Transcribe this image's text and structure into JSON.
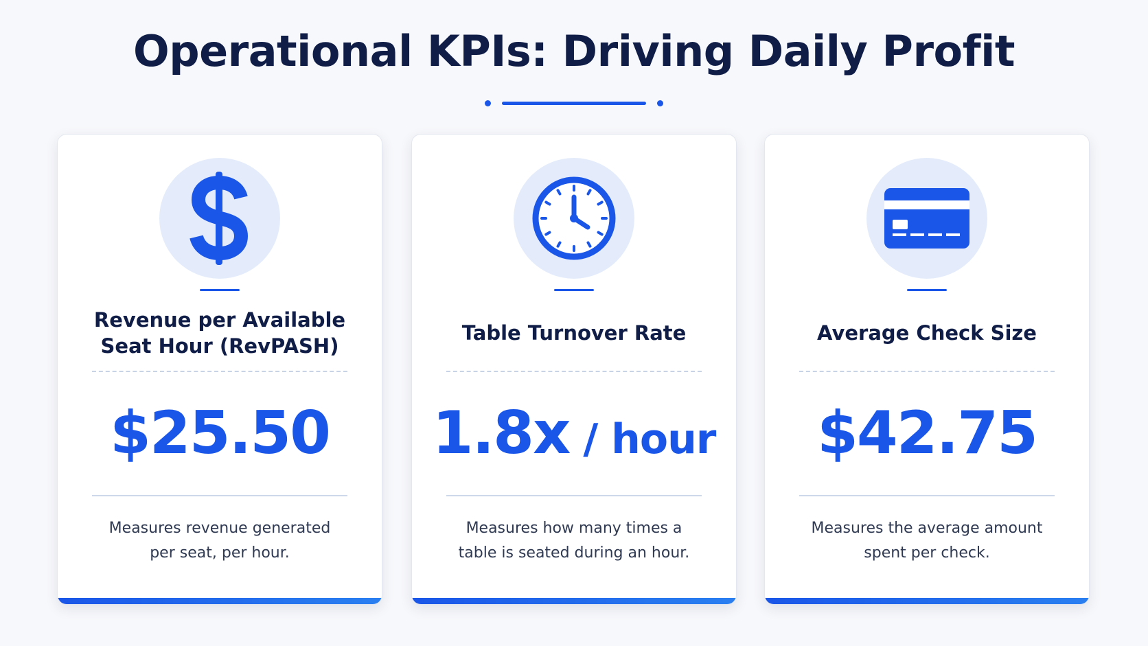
{
  "title": "Operational KPIs: Driving Daily Profit",
  "accent_color": "#1a56e8",
  "cards": [
    {
      "icon": "dollar-sign-icon",
      "title": "Revenue per Available Seat Hour (RevPASH)",
      "value": "$25.50",
      "value_suffix": "",
      "description": "Measures revenue generated per seat, per hour."
    },
    {
      "icon": "clock-icon",
      "title": "Table Turnover Rate",
      "value": "1.8x",
      "value_suffix": " / hour",
      "description": "Measures how many times a table is seated during an hour."
    },
    {
      "icon": "credit-card-icon",
      "title": "Average Check Size",
      "value": "$42.75",
      "value_suffix": "",
      "description": "Measures the average amount spent per check."
    }
  ]
}
